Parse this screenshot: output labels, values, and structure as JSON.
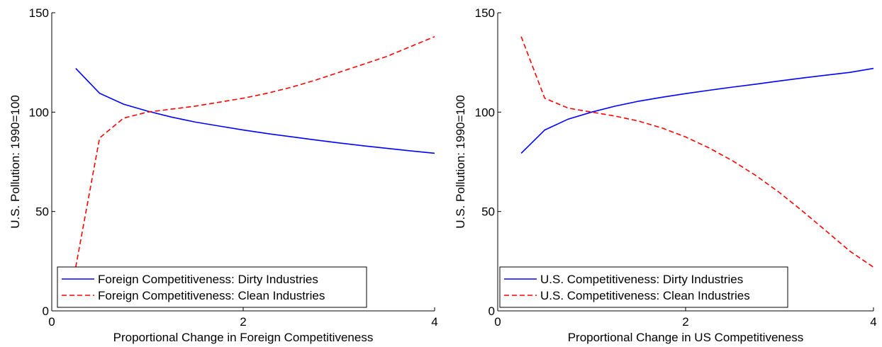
{
  "chart_data": [
    {
      "type": "line",
      "title": "",
      "xlabel": "Proportional Change in Foreign Competitiveness",
      "ylabel": "U.S. Pollution: 1990=100",
      "xlim": [
        0,
        4
      ],
      "ylim": [
        0,
        150
      ],
      "xticks": [
        0,
        2,
        4
      ],
      "yticks": [
        0,
        50,
        100,
        150
      ],
      "grid": false,
      "legend_position": "bottom-left",
      "series": [
        {
          "name": "Foreign Competitiveness: Dirty Industries",
          "color": "#0000ff",
          "style": "solid",
          "x": [
            0.25,
            0.5,
            0.75,
            1.0,
            1.25,
            1.5,
            1.75,
            2.0,
            2.25,
            2.5,
            2.75,
            3.0,
            3.25,
            3.5,
            3.75,
            4.0
          ],
          "y": [
            122,
            109.5,
            104,
            100.5,
            97.5,
            95,
            93,
            91,
            89.2,
            87.6,
            86,
            84.5,
            83.1,
            81.8,
            80.5,
            79.3
          ]
        },
        {
          "name": "Foreign Competitiveness: Clean Industries",
          "color": "#ff0000",
          "style": "dashed",
          "x": [
            0.25,
            0.5,
            0.75,
            1.0,
            1.25,
            1.5,
            1.75,
            2.0,
            2.25,
            2.5,
            2.75,
            3.0,
            3.25,
            3.5,
            3.75,
            4.0
          ],
          "y": [
            22,
            87,
            97,
            100,
            101.5,
            103,
            105,
            107,
            109.5,
            112.5,
            116,
            120,
            124,
            128,
            133,
            138
          ]
        }
      ]
    },
    {
      "type": "line",
      "title": "",
      "xlabel": "Proportional Change in US Competitiveness",
      "ylabel": "U.S. Pollution: 1990=100",
      "xlim": [
        0,
        4
      ],
      "ylim": [
        0,
        150
      ],
      "xticks": [
        0,
        2,
        4
      ],
      "yticks": [
        0,
        50,
        100,
        150
      ],
      "grid": false,
      "legend_position": "bottom-left",
      "series": [
        {
          "name": "U.S. Competitiveness: Dirty Industries",
          "color": "#0000ff",
          "style": "solid",
          "x": [
            0.25,
            0.5,
            0.75,
            1.0,
            1.25,
            1.5,
            1.75,
            2.0,
            2.25,
            2.5,
            2.75,
            3.0,
            3.25,
            3.5,
            3.75,
            4.0
          ],
          "y": [
            79.3,
            91,
            96.5,
            100,
            103,
            105.5,
            107.5,
            109.3,
            111,
            112.6,
            114.1,
            115.7,
            117.2,
            118.6,
            120,
            122
          ]
        },
        {
          "name": "U.S. Competitiveness: Clean Industries",
          "color": "#ff0000",
          "style": "dashed",
          "x": [
            0.25,
            0.5,
            0.75,
            1.0,
            1.25,
            1.5,
            1.75,
            2.0,
            2.25,
            2.5,
            2.75,
            3.0,
            3.25,
            3.5,
            3.75,
            4.0
          ],
          "y": [
            138,
            107,
            102,
            100,
            98,
            95.5,
            92,
            87.5,
            82,
            75.5,
            68,
            59.5,
            50,
            40,
            30,
            22
          ]
        }
      ]
    }
  ]
}
